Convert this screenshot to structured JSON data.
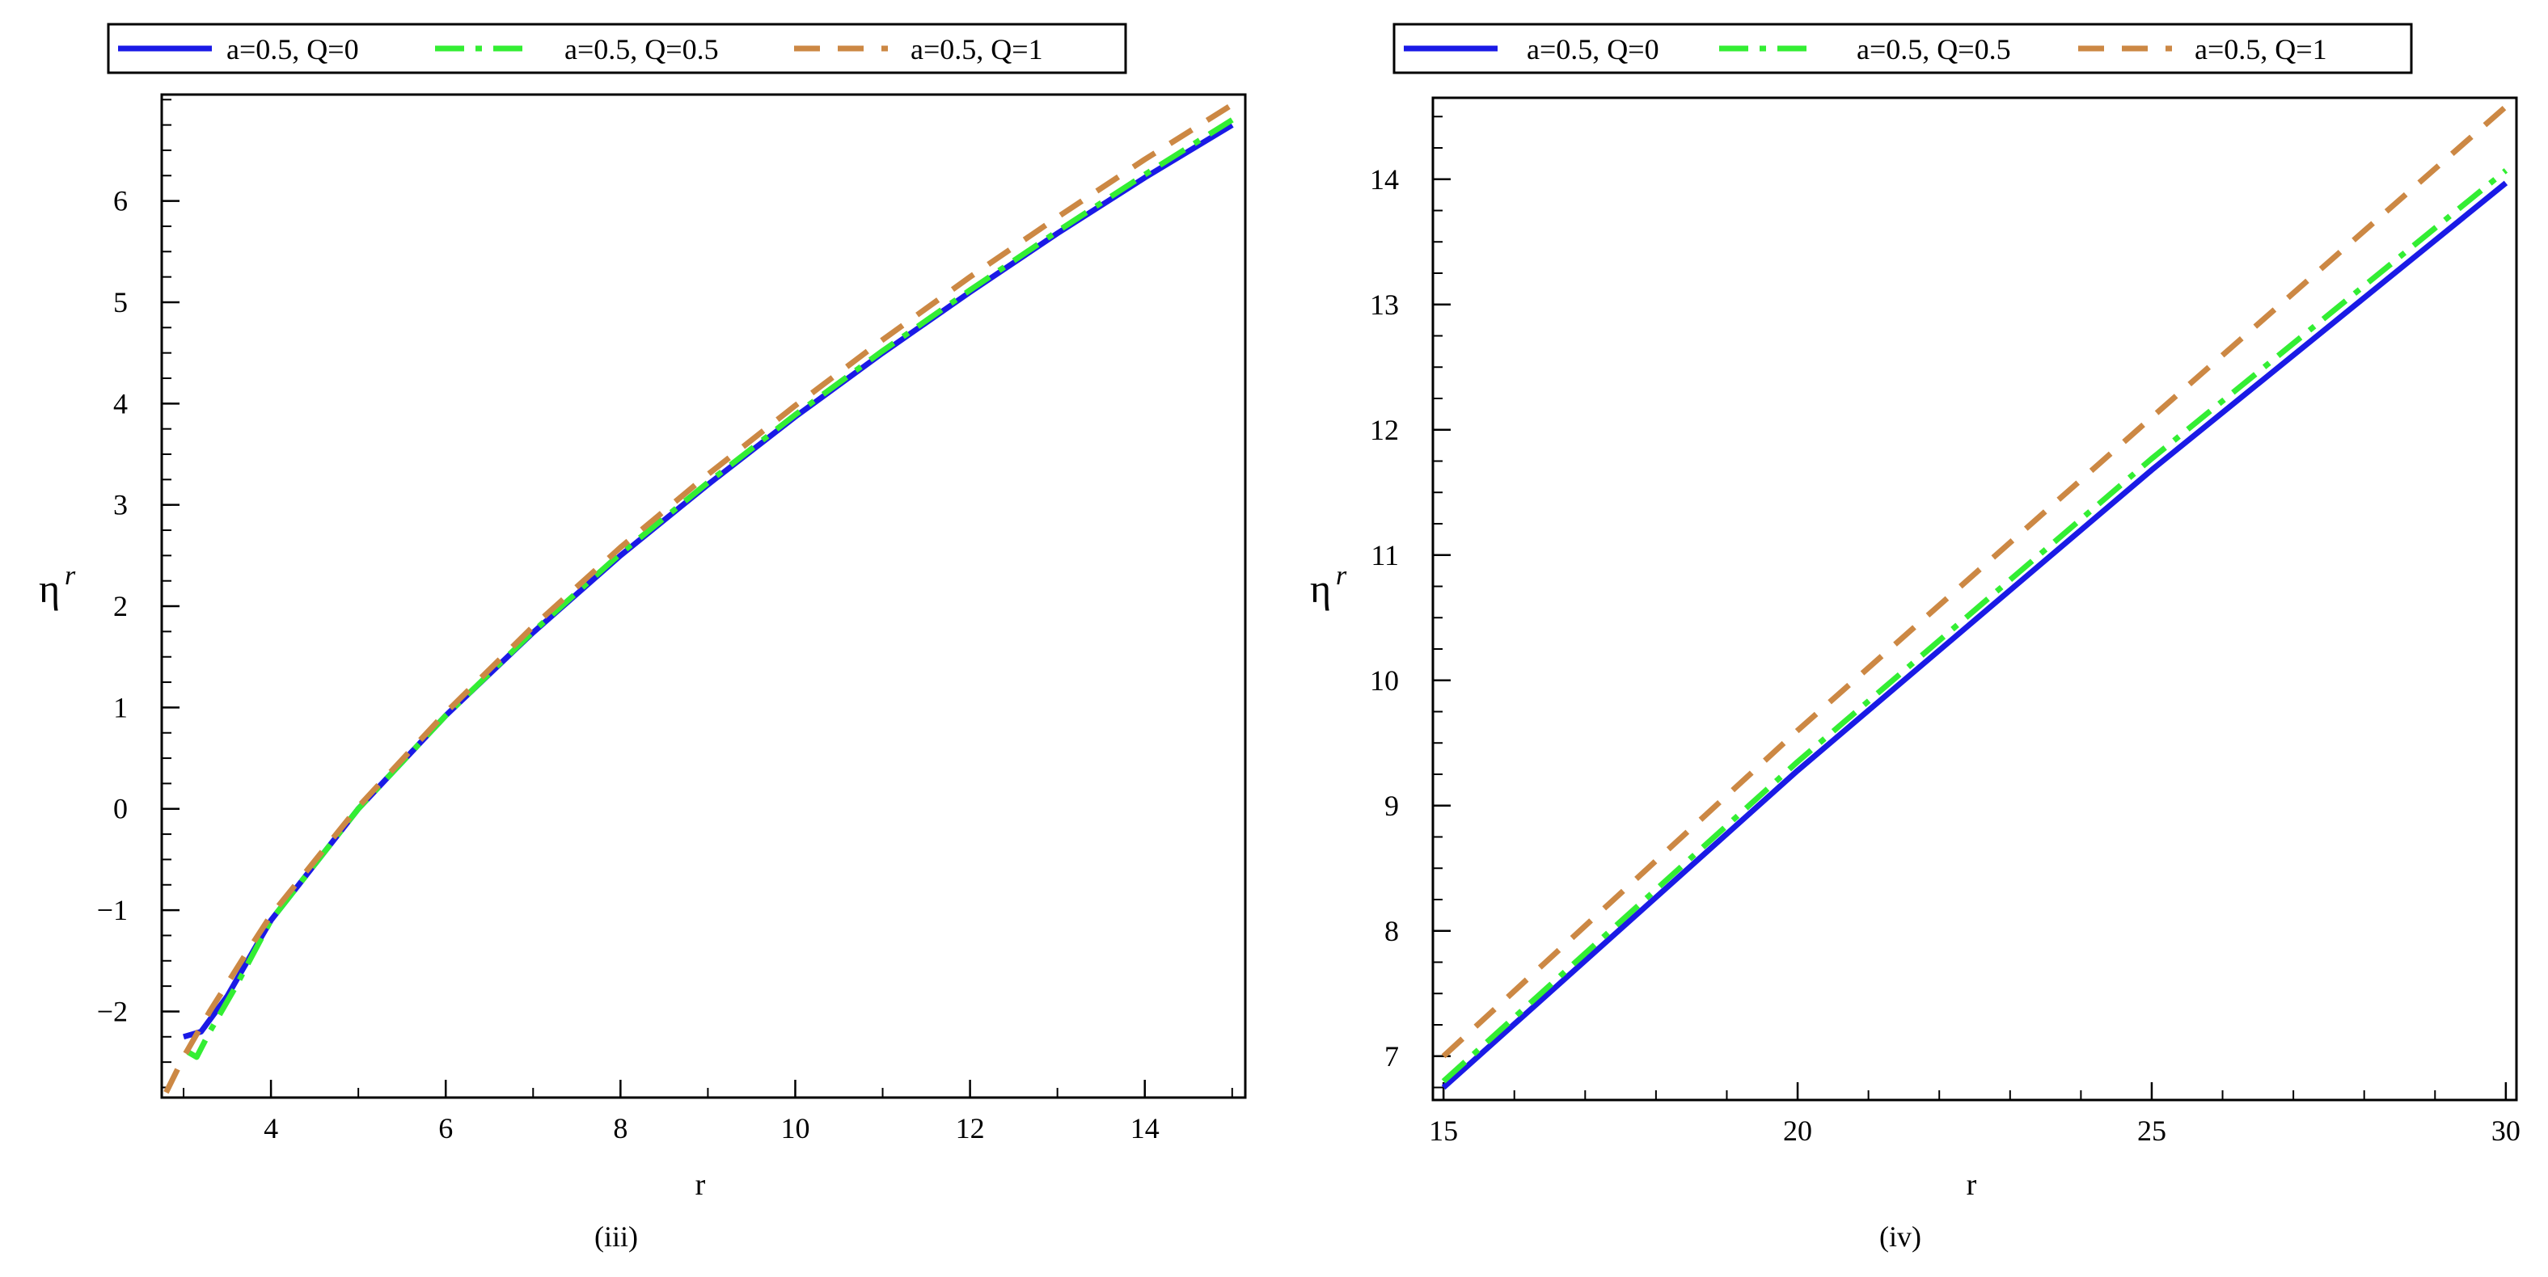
{
  "colors": {
    "blue": "#1a1ae6",
    "green": "#33ee33",
    "brown": "#cc8844"
  },
  "legend": [
    {
      "label": "a=0.5, Q=0",
      "color": "#1a1ae6",
      "dash": "solid"
    },
    {
      "label": "a=0.5, Q=0.5",
      "color": "#33ee33",
      "dash": "dashdot"
    },
    {
      "label": "a=0.5, Q=1",
      "color": "#cc8844",
      "dash": "dash"
    }
  ],
  "chart_data": [
    {
      "type": "line",
      "caption": "(iii)",
      "xlabel": "r",
      "ylabel": "η",
      "ylabel_sup": "r",
      "xlim": [
        2.75,
        15.15
      ],
      "ylim": [
        -2.85,
        7.05
      ],
      "xticks": [
        4,
        6,
        8,
        10,
        12,
        14
      ],
      "yticks": [
        -2,
        -1,
        0,
        1,
        2,
        3,
        4,
        5,
        6
      ],
      "xtick_labels": [
        "4",
        "6",
        "8",
        "10",
        "12",
        "14"
      ],
      "ytick_labels": [
        "−2",
        "−1",
        "0",
        "1",
        "2",
        "3",
        "4",
        "5",
        "6"
      ],
      "grid": false,
      "legend_position": "top",
      "series": [
        {
          "name": "a=0.5, Q=0",
          "color": "#1a1ae6",
          "dash": "solid",
          "x": [
            3.0,
            3.2,
            3.5,
            4,
            5,
            6,
            7,
            8,
            9,
            10,
            11,
            12,
            13,
            14,
            15
          ],
          "y": [
            -2.25,
            -2.2,
            -1.85,
            -1.1,
            0.0,
            0.92,
            1.74,
            2.5,
            3.2,
            3.87,
            4.5,
            5.1,
            5.68,
            6.23,
            6.75
          ]
        },
        {
          "name": "a=0.5, Q=0.5",
          "color": "#33ee33",
          "dash": "dashdot",
          "x": [
            3.05,
            3.15,
            3.3,
            3.6,
            4,
            5,
            6,
            7,
            8,
            9,
            10,
            11,
            12,
            13,
            14,
            15
          ],
          "y": [
            -2.4,
            -2.45,
            -2.2,
            -1.75,
            -1.1,
            0.0,
            0.92,
            1.75,
            2.52,
            3.22,
            3.89,
            4.52,
            5.12,
            5.7,
            6.26,
            6.8
          ]
        },
        {
          "name": "a=0.5, Q=1",
          "color": "#cc8844",
          "dash": "dash",
          "x": [
            2.8,
            3.0,
            3.3,
            3.7,
            4,
            5,
            6,
            7,
            8,
            9,
            10,
            11,
            12,
            13,
            14,
            15
          ],
          "y": [
            -2.8,
            -2.45,
            -2.0,
            -1.45,
            -1.05,
            0.02,
            0.95,
            1.8,
            2.58,
            3.3,
            3.98,
            4.63,
            5.25,
            5.84,
            6.41,
            6.95
          ]
        }
      ]
    },
    {
      "type": "line",
      "caption": "(iv)",
      "xlabel": "r",
      "ylabel": "η",
      "ylabel_sup": "r",
      "xlim": [
        14.85,
        30.15
      ],
      "ylim": [
        6.65,
        14.65
      ],
      "xticks": [
        15,
        20,
        25,
        30
      ],
      "yticks": [
        7,
        8,
        9,
        10,
        11,
        12,
        13,
        14
      ],
      "xtick_labels": [
        "15",
        "20",
        "25",
        "30"
      ],
      "ytick_labels": [
        "7",
        "8",
        "9",
        "10",
        "11",
        "12",
        "13",
        "14"
      ],
      "grid": false,
      "legend_position": "top",
      "series": [
        {
          "name": "a=0.5, Q=0",
          "color": "#1a1ae6",
          "dash": "solid",
          "x": [
            15,
            20,
            25,
            30
          ],
          "y": [
            6.75,
            9.28,
            11.68,
            13.97
          ]
        },
        {
          "name": "a=0.5, Q=0.5",
          "color": "#33ee33",
          "dash": "dashdot",
          "x": [
            15,
            20,
            25,
            30
          ],
          "y": [
            6.8,
            9.35,
            11.77,
            14.07
          ]
        },
        {
          "name": "a=0.5, Q=1",
          "color": "#cc8844",
          "dash": "dash",
          "x": [
            15,
            20,
            25,
            30
          ],
          "y": [
            7.0,
            9.6,
            12.1,
            14.58
          ]
        }
      ]
    }
  ]
}
